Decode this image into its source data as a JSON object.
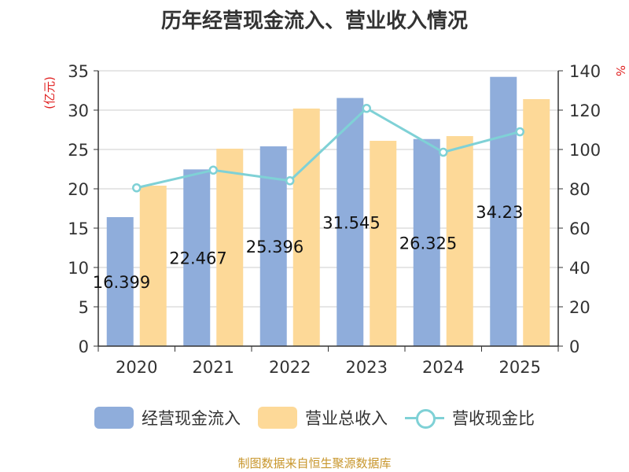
{
  "title": "历年经营现金流入、营业收入情况",
  "source": "制图数据来自恒生聚源数据库",
  "colors": {
    "cash": "#8faddb",
    "revenue": "#fdd998",
    "ratio": "#7fd1d6",
    "unit": "#e02020",
    "axis": "#333333",
    "grid": "#cccccc"
  },
  "legend": [
    {
      "label": "经营现金流入",
      "icon": "bar-swatch",
      "color": "#8faddb"
    },
    {
      "label": "营业总收入",
      "icon": "bar-swatch",
      "color": "#fdd998"
    },
    {
      "label": "营收现金比",
      "icon": "line-circle-swatch",
      "color": "#7fd1d6"
    }
  ],
  "chart_data": {
    "type": "bar",
    "categories": [
      "2020",
      "2021",
      "2022",
      "2023",
      "2024",
      "2025"
    ],
    "series": [
      {
        "name": "经营现金流入",
        "type": "bar",
        "axis": "left",
        "values": [
          16.399,
          22.467,
          25.396,
          31.545,
          26.325,
          34.23
        ],
        "labels": [
          "16.399",
          "22.467",
          "25.396",
          "31.545",
          "26.325",
          "34.23"
        ]
      },
      {
        "name": "营业总收入",
        "type": "bar",
        "axis": "left",
        "values": [
          20.4,
          25.1,
          30.2,
          26.1,
          26.7,
          31.4
        ]
      },
      {
        "name": "营收现金比",
        "type": "line",
        "axis": "right",
        "values": [
          80.5,
          89.5,
          84.1,
          120.9,
          98.6,
          109.0
        ]
      }
    ],
    "y_left": {
      "label": "(亿元)",
      "min": 0,
      "max": 35,
      "ticks": [
        0,
        5,
        10,
        15,
        20,
        25,
        30,
        35
      ]
    },
    "y_right": {
      "label": "%",
      "min": 0,
      "max": 140,
      "ticks": [
        0,
        20,
        40,
        60,
        80,
        100,
        120,
        140
      ]
    },
    "grid": true,
    "legend_position": "bottom"
  }
}
